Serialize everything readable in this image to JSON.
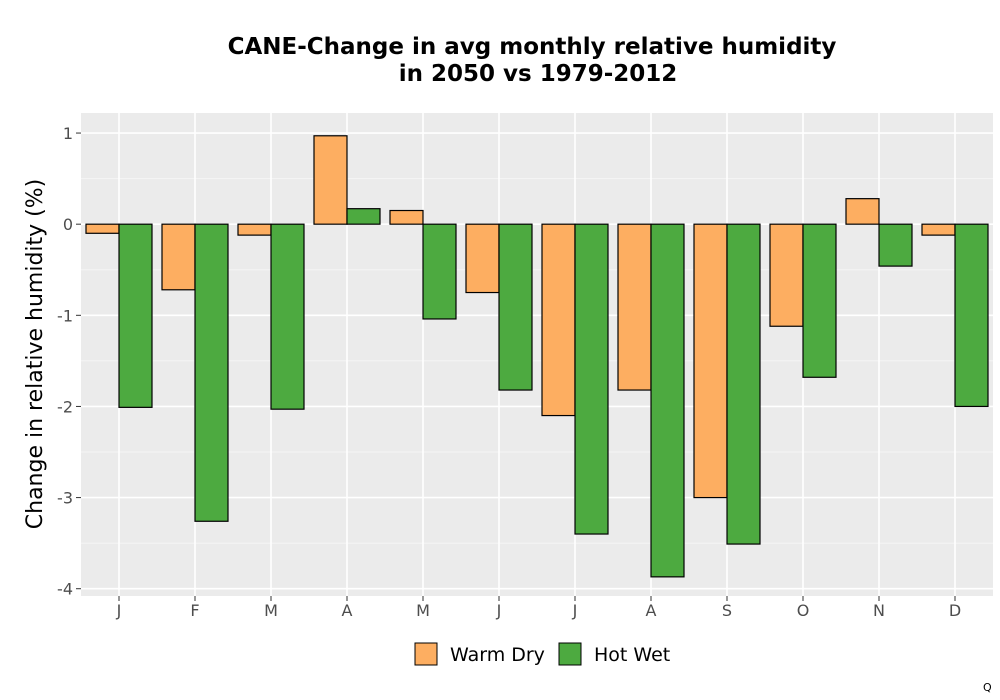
{
  "chart_data": {
    "type": "bar",
    "title_lines": [
      "CANE-Change in avg monthly relative humidity",
      "in 2050 vs 1979-2012"
    ],
    "xlabel": "",
    "ylabel": "Change in relative humidity (%)",
    "categories": [
      "J",
      "F",
      "M",
      "A",
      "M",
      "J",
      "J",
      "A",
      "S",
      "O",
      "N",
      "D"
    ],
    "y_ticks": [
      1,
      0,
      -1,
      -2,
      -3,
      -4
    ],
    "y_tick_labels": [
      "1",
      "0",
      "-1",
      "-2",
      "-3",
      "-4"
    ],
    "ylim": [
      -4.08,
      1.22
    ],
    "grid": true,
    "legend_position": "bottom",
    "series": [
      {
        "name": "Warm Dry",
        "color": "#fdae61",
        "values": [
          -0.1,
          -0.72,
          -0.12,
          0.97,
          0.15,
          -0.75,
          -2.1,
          -1.82,
          -3.0,
          -1.12,
          0.28,
          -0.12
        ]
      },
      {
        "name": "Hot Wet",
        "color": "#4daa40",
        "values": [
          -2.01,
          -3.26,
          -2.03,
          0.17,
          -1.04,
          -1.82,
          -3.4,
          -3.87,
          -3.51,
          -1.68,
          -0.46,
          -2.0
        ]
      }
    ]
  },
  "corner_mark": "Q"
}
